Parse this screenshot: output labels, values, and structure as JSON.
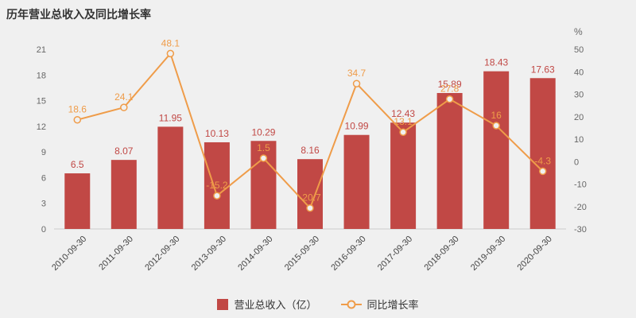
{
  "chart_data": {
    "type": "bar+line",
    "title": "历年营业总收入及同比增长率",
    "categories": [
      "2010-09-30",
      "2011-09-30",
      "2012-09-30",
      "2013-09-30",
      "2014-09-30",
      "2015-09-30",
      "2016-09-30",
      "2017-09-30",
      "2018-09-30",
      "2019-09-30",
      "2020-09-30"
    ],
    "series": [
      {
        "name": "营业总收入（亿）",
        "type": "bar",
        "axis": "left",
        "color": "#c14845",
        "values": [
          6.5,
          8.07,
          11.95,
          10.13,
          10.29,
          8.16,
          10.99,
          12.43,
          15.89,
          18.43,
          17.63
        ]
      },
      {
        "name": "同比增长率",
        "type": "line",
        "axis": "right",
        "color": "#ef9c49",
        "values": [
          18.6,
          24.1,
          48.1,
          -15.2,
          1.5,
          -20.7,
          34.7,
          13.1,
          27.8,
          16,
          -4.3
        ]
      }
    ],
    "left_axis": {
      "min": 0,
      "max": 21,
      "ticks": [
        0,
        3,
        6,
        9,
        12,
        15,
        18,
        21
      ]
    },
    "right_axis": {
      "min": -30,
      "max": 50,
      "ticks": [
        -30,
        -20,
        -10,
        0,
        10,
        20,
        30,
        40,
        50
      ],
      "unit": "%"
    },
    "grid": false,
    "legend_position": "bottom",
    "background_color": "#f0f0f0"
  }
}
